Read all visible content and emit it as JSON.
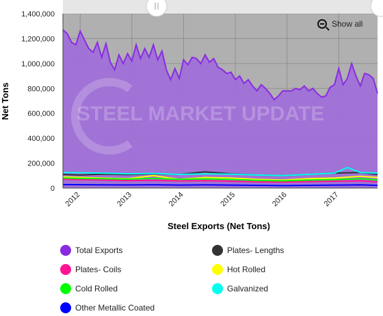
{
  "chart_data": {
    "type": "area",
    "title": "",
    "xlabel": "Steel Exports (Net Tons)",
    "ylabel": "Net Tons",
    "ylim": [
      0,
      1400000
    ],
    "y_ticks": [
      "0",
      "200,000",
      "400,000",
      "600,000",
      "800,000",
      "1,000,000",
      "1,200,000",
      "1,400,000"
    ],
    "x_ticks": [
      "2012",
      "2013",
      "2014",
      "2015",
      "2016",
      "2017"
    ],
    "xlim": [
      "2011-09",
      "2017-10"
    ],
    "grid": true,
    "legend_position": "bottom",
    "watermark": "STEEL MARKET UPDATE",
    "show_all_label": "Show all",
    "selected_range_background": "#b0b0b0",
    "series": [
      {
        "name": "Total Exports",
        "color": "#8a2be2",
        "points": [
          [
            "2011-09",
            1270000
          ],
          [
            "2011-10",
            1240000
          ],
          [
            "2011-11",
            1170000
          ],
          [
            "2011-12",
            1150000
          ],
          [
            "2012-01",
            1260000
          ],
          [
            "2012-02",
            1190000
          ],
          [
            "2012-03",
            1120000
          ],
          [
            "2012-04",
            1090000
          ],
          [
            "2012-05",
            1170000
          ],
          [
            "2012-06",
            1050000
          ],
          [
            "2012-07",
            1160000
          ],
          [
            "2012-08",
            1010000
          ],
          [
            "2012-09",
            950000
          ],
          [
            "2012-10",
            1070000
          ],
          [
            "2012-11",
            1000000
          ],
          [
            "2012-12",
            1080000
          ],
          [
            "2013-01",
            1020000
          ],
          [
            "2013-02",
            1150000
          ],
          [
            "2013-03",
            1040000
          ],
          [
            "2013-04",
            1120000
          ],
          [
            "2013-05",
            1050000
          ],
          [
            "2013-06",
            1150000
          ],
          [
            "2013-07",
            1030000
          ],
          [
            "2013-08",
            1100000
          ],
          [
            "2013-09",
            950000
          ],
          [
            "2013-10",
            870000
          ],
          [
            "2013-11",
            960000
          ],
          [
            "2013-12",
            880000
          ],
          [
            "2014-01",
            1030000
          ],
          [
            "2014-02",
            990000
          ],
          [
            "2014-03",
            1050000
          ],
          [
            "2014-04",
            1040000
          ],
          [
            "2014-05",
            1000000
          ],
          [
            "2014-06",
            1070000
          ],
          [
            "2014-07",
            1010000
          ],
          [
            "2014-08",
            1040000
          ],
          [
            "2014-09",
            970000
          ],
          [
            "2014-10",
            950000
          ],
          [
            "2014-11",
            920000
          ],
          [
            "2014-12",
            930000
          ],
          [
            "2015-01",
            870000
          ],
          [
            "2015-02",
            900000
          ],
          [
            "2015-03",
            840000
          ],
          [
            "2015-04",
            870000
          ],
          [
            "2015-05",
            820000
          ],
          [
            "2015-06",
            780000
          ],
          [
            "2015-07",
            830000
          ],
          [
            "2015-08",
            800000
          ],
          [
            "2015-09",
            760000
          ],
          [
            "2015-10",
            710000
          ],
          [
            "2015-11",
            740000
          ],
          [
            "2015-12",
            780000
          ],
          [
            "2016-01",
            780000
          ],
          [
            "2016-02",
            780000
          ],
          [
            "2016-03",
            800000
          ],
          [
            "2016-04",
            790000
          ],
          [
            "2016-05",
            820000
          ],
          [
            "2016-06",
            780000
          ],
          [
            "2016-07",
            800000
          ],
          [
            "2016-08",
            760000
          ],
          [
            "2016-09",
            730000
          ],
          [
            "2016-10",
            740000
          ],
          [
            "2016-11",
            810000
          ],
          [
            "2016-12",
            830000
          ],
          [
            "2017-01",
            960000
          ],
          [
            "2017-02",
            830000
          ],
          [
            "2017-03",
            880000
          ],
          [
            "2017-04",
            1000000
          ],
          [
            "2017-05",
            900000
          ],
          [
            "2017-06",
            820000
          ],
          [
            "2017-07",
            920000
          ],
          [
            "2017-08",
            910000
          ],
          [
            "2017-09",
            880000
          ],
          [
            "2017-10",
            760000
          ]
        ]
      },
      {
        "name": "Plates- Lengths",
        "color": "#333333",
        "points": [
          [
            "2011-09",
            110000
          ],
          [
            "2012-01",
            105000
          ],
          [
            "2012-06",
            112000
          ],
          [
            "2012-12",
            108000
          ],
          [
            "2013-06",
            115000
          ],
          [
            "2013-12",
            110000
          ],
          [
            "2014-06",
            130000
          ],
          [
            "2014-12",
            115000
          ],
          [
            "2015-06",
            105000
          ],
          [
            "2015-12",
            100000
          ],
          [
            "2016-06",
            110000
          ],
          [
            "2016-12",
            120000
          ],
          [
            "2017-06",
            125000
          ],
          [
            "2017-10",
            110000
          ]
        ]
      },
      {
        "name": "Plates- Coils",
        "color": "#ff1493",
        "points": [
          [
            "2011-09",
            70000
          ],
          [
            "2012-06",
            65000
          ],
          [
            "2012-12",
            60000
          ],
          [
            "2013-06",
            62000
          ],
          [
            "2013-12",
            58000
          ],
          [
            "2014-06",
            60000
          ],
          [
            "2014-12",
            55000
          ],
          [
            "2015-06",
            50000
          ],
          [
            "2015-12",
            48000
          ],
          [
            "2016-06",
            52000
          ],
          [
            "2016-12",
            55000
          ],
          [
            "2017-06",
            58000
          ],
          [
            "2017-10",
            50000
          ]
        ]
      },
      {
        "name": "Hot Rolled",
        "color": "#ffff00",
        "points": [
          [
            "2011-09",
            90000
          ],
          [
            "2012-06",
            80000
          ],
          [
            "2012-12",
            75000
          ],
          [
            "2013-06",
            100000
          ],
          [
            "2013-12",
            70000
          ],
          [
            "2014-06",
            85000
          ],
          [
            "2014-12",
            80000
          ],
          [
            "2015-06",
            70000
          ],
          [
            "2015-12",
            65000
          ],
          [
            "2016-06",
            75000
          ],
          [
            "2016-12",
            80000
          ],
          [
            "2017-06",
            95000
          ],
          [
            "2017-10",
            85000
          ]
        ]
      },
      {
        "name": "Cold Rolled",
        "color": "#00ff00",
        "points": [
          [
            "2011-09",
            80000
          ],
          [
            "2012-06",
            75000
          ],
          [
            "2012-12",
            72000
          ],
          [
            "2013-06",
            78000
          ],
          [
            "2013-12",
            70000
          ],
          [
            "2014-06",
            74000
          ],
          [
            "2014-12",
            70000
          ],
          [
            "2015-06",
            62000
          ],
          [
            "2015-12",
            58000
          ],
          [
            "2016-06",
            64000
          ],
          [
            "2016-12",
            68000
          ],
          [
            "2017-06",
            75000
          ],
          [
            "2017-10",
            65000
          ]
        ]
      },
      {
        "name": "Galvanized",
        "color": "#00ffee",
        "points": [
          [
            "2011-09",
            125000
          ],
          [
            "2012-06",
            120000
          ],
          [
            "2012-12",
            115000
          ],
          [
            "2013-06",
            118000
          ],
          [
            "2013-12",
            110000
          ],
          [
            "2014-06",
            115000
          ],
          [
            "2014-12",
            112000
          ],
          [
            "2015-06",
            105000
          ],
          [
            "2015-12",
            100000
          ],
          [
            "2016-06",
            110000
          ],
          [
            "2016-12",
            120000
          ],
          [
            "2017-03",
            165000
          ],
          [
            "2017-06",
            125000
          ],
          [
            "2017-10",
            120000
          ]
        ]
      },
      {
        "name": "Other Metallic Coated",
        "color": "#0000ff",
        "points": [
          [
            "2011-09",
            28000
          ],
          [
            "2012-06",
            26000
          ],
          [
            "2012-12",
            25000
          ],
          [
            "2013-06",
            27000
          ],
          [
            "2013-12",
            24000
          ],
          [
            "2014-06",
            26000
          ],
          [
            "2014-12",
            24000
          ],
          [
            "2015-06",
            22000
          ],
          [
            "2015-12",
            20000
          ],
          [
            "2016-06",
            22000
          ],
          [
            "2016-12",
            24000
          ],
          [
            "2017-06",
            26000
          ],
          [
            "2017-10",
            22000
          ]
        ]
      }
    ]
  }
}
